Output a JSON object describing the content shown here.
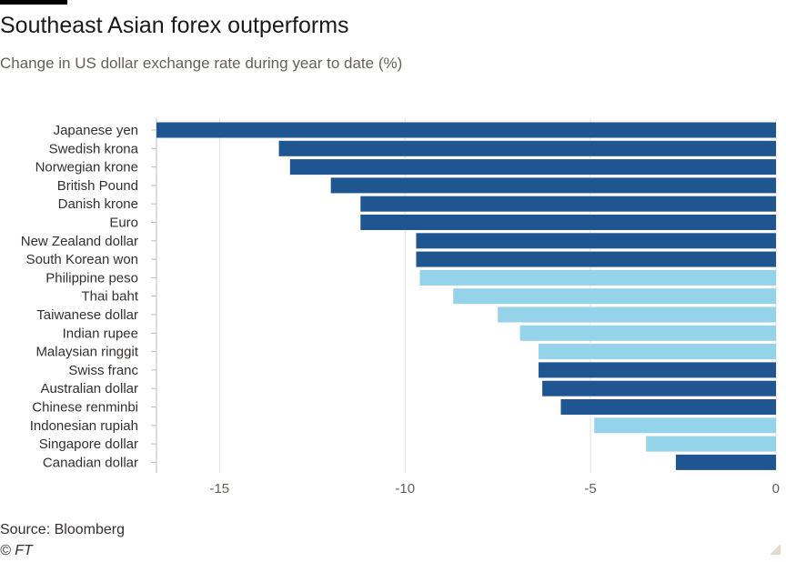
{
  "header": {
    "title": "Southeast Asian forex outperforms",
    "subtitle": "Change in US dollar exchange rate during year to date (%)"
  },
  "footer": {
    "source": "Source: Bloomberg",
    "copyright": "© FT"
  },
  "colors": {
    "dark_bar": "#1f5591",
    "light_bar": "#95d3ea",
    "grid": "#e0e0e0",
    "axis": "#bdbdbd"
  },
  "chart_data": {
    "type": "bar",
    "orientation": "horizontal",
    "categories": [
      "Japanese yen",
      "Swedish krona",
      "Norwegian krone",
      "British Pound",
      "Danish krone",
      "Euro",
      "New Zealand dollar",
      "South Korean won",
      "Philippine peso",
      "Thai baht",
      "Taiwanese dollar",
      "Indian rupee",
      "Malaysian ringgit",
      "Swiss franc",
      "Australian dollar",
      "Chinese renminbi",
      "Indonesian rupiah",
      "Singapore dollar",
      "Canadian dollar"
    ],
    "values": [
      -16.7,
      -13.4,
      -13.1,
      -12.0,
      -11.2,
      -11.2,
      -9.7,
      -9.7,
      -9.6,
      -8.7,
      -7.5,
      -6.9,
      -6.4,
      -6.4,
      -6.3,
      -5.8,
      -4.9,
      -3.5,
      -2.7
    ],
    "highlight": [
      false,
      false,
      false,
      false,
      false,
      false,
      false,
      false,
      true,
      true,
      true,
      true,
      true,
      false,
      false,
      false,
      true,
      true,
      false
    ],
    "xlim": [
      -16.7,
      0
    ],
    "xticks": [
      -15,
      -10,
      -5,
      0
    ],
    "xtick_labels": [
      "-15",
      "-10",
      "-5",
      "0"
    ],
    "grid": true
  }
}
